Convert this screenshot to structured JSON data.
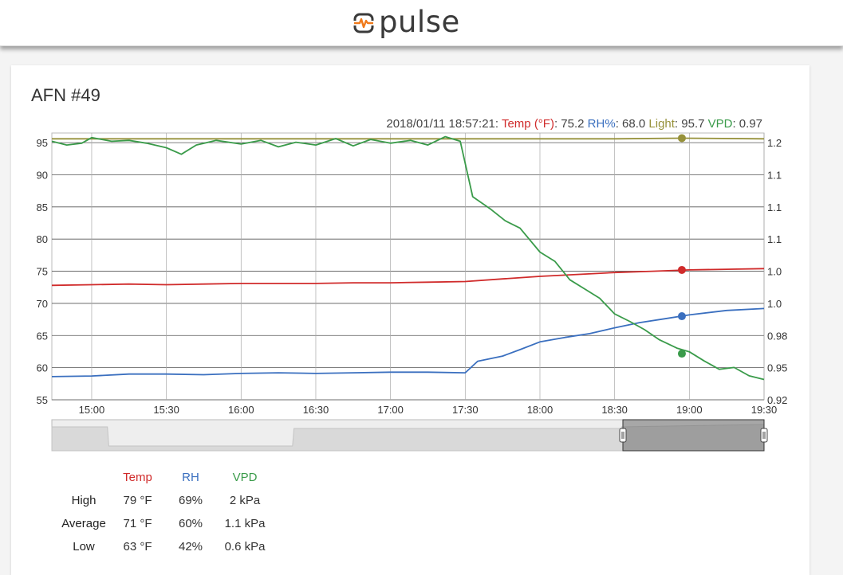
{
  "header": {
    "brand": "pulse",
    "logo_icon": "pulse-logo-icon"
  },
  "device": {
    "title": "AFN #49"
  },
  "readout": {
    "timestamp": "2018/01/11 18:57:21:",
    "temp_label": "Temp (°F)",
    "temp_value": ": 75.2",
    "rh_label": "RH%",
    "rh_value": ": 68.0",
    "light_label": "Light",
    "light_value": ": 95.7",
    "vpd_label": "VPD",
    "vpd_value": ": 0.97"
  },
  "colors": {
    "temp": "#d02b2b",
    "rh": "#3a6fbf",
    "light": "#96913a",
    "vpd": "#3a9b4a"
  },
  "stats": {
    "headers": {
      "temp": "Temp",
      "rh": "RH",
      "vpd": "VPD"
    },
    "rows": [
      {
        "label": "High",
        "temp": "79 °F",
        "rh": "69%",
        "vpd": "2 kPa"
      },
      {
        "label": "Average",
        "temp": "71 °F",
        "rh": "60%",
        "vpd": "1.1 kPa"
      },
      {
        "label": "Low",
        "temp": "63 °F",
        "rh": "42%",
        "vpd": "0.6 kPa"
      }
    ]
  },
  "chart_data": {
    "type": "line",
    "x_ticks": [
      "15:00",
      "15:30",
      "16:00",
      "16:30",
      "17:00",
      "17:30",
      "18:00",
      "18:30",
      "19:00",
      "19:30"
    ],
    "xlim": [
      "14:44",
      "19:30"
    ],
    "y_left_ticks": [
      "55",
      "60",
      "65",
      "70",
      "75",
      "80",
      "85",
      "90",
      "95"
    ],
    "y_left_lim": [
      55,
      96.5
    ],
    "y_right_ticks": [
      "0.92",
      "0.95",
      "0.98",
      "1.0",
      "1.0",
      "1.1",
      "1.1",
      "1.1",
      "1.2"
    ],
    "y_right_lim": [
      0.92,
      1.209
    ],
    "grid": true,
    "marker_time": "18:57",
    "series": [
      {
        "name": "Light",
        "axis": "left",
        "x": [
          "14:44",
          "15:30",
          "16:30",
          "17:30",
          "18:30",
          "18:57",
          "19:30"
        ],
        "y": [
          95.6,
          95.6,
          95.6,
          95.6,
          95.6,
          95.7,
          95.6
        ],
        "marker": 95.7
      },
      {
        "name": "Temp",
        "axis": "left",
        "x": [
          "14:44",
          "15:00",
          "15:15",
          "15:30",
          "15:45",
          "16:00",
          "16:15",
          "16:30",
          "16:45",
          "17:00",
          "17:15",
          "17:30",
          "17:45",
          "18:00",
          "18:15",
          "18:30",
          "18:45",
          "19:00",
          "19:15",
          "19:30"
        ],
        "y": [
          72.8,
          72.9,
          73.0,
          72.9,
          73.0,
          73.1,
          73.1,
          73.1,
          73.2,
          73.2,
          73.3,
          73.4,
          73.8,
          74.2,
          74.5,
          74.8,
          75.0,
          75.2,
          75.3,
          75.4
        ],
        "marker": 75.2
      },
      {
        "name": "RH",
        "axis": "left",
        "x": [
          "14:44",
          "15:00",
          "15:15",
          "15:30",
          "15:45",
          "16:00",
          "16:15",
          "16:30",
          "16:45",
          "17:00",
          "17:15",
          "17:30",
          "17:35",
          "17:45",
          "17:52",
          "18:00",
          "18:10",
          "18:20",
          "18:30",
          "18:40",
          "18:50",
          "19:00",
          "19:15",
          "19:30"
        ],
        "y": [
          58.6,
          58.7,
          59.0,
          59.0,
          58.9,
          59.1,
          59.2,
          59.1,
          59.2,
          59.3,
          59.3,
          59.2,
          61.0,
          61.8,
          62.8,
          64.0,
          64.7,
          65.3,
          66.2,
          67.0,
          67.6,
          68.2,
          68.9,
          69.2
        ],
        "marker": 68.0
      },
      {
        "name": "VPD",
        "axis": "right",
        "x": [
          "14:44",
          "14:50",
          "14:56",
          "15:00",
          "15:08",
          "15:15",
          "15:22",
          "15:30",
          "15:36",
          "15:42",
          "15:50",
          "16:00",
          "16:08",
          "16:15",
          "16:22",
          "16:30",
          "16:38",
          "16:45",
          "16:52",
          "17:00",
          "17:08",
          "17:15",
          "17:22",
          "17:28",
          "17:33",
          "17:40",
          "17:46",
          "17:52",
          "18:00",
          "18:06",
          "18:12",
          "18:18",
          "18:24",
          "18:30",
          "18:36",
          "18:42",
          "18:48",
          "18:55",
          "19:00",
          "19:06",
          "19:12",
          "19:18",
          "19:24",
          "19:30"
        ],
        "y": [
          1.2,
          1.196,
          1.198,
          1.204,
          1.2,
          1.201,
          1.198,
          1.193,
          1.186,
          1.196,
          1.201,
          1.197,
          1.201,
          1.194,
          1.199,
          1.196,
          1.203,
          1.195,
          1.202,
          1.198,
          1.201,
          1.196,
          1.205,
          1.2,
          1.14,
          1.127,
          1.114,
          1.106,
          1.08,
          1.07,
          1.05,
          1.04,
          1.03,
          1.013,
          1.005,
          0.996,
          0.985,
          0.976,
          0.972,
          0.962,
          0.953,
          0.955,
          0.946,
          0.942
        ],
        "marker": 0.97
      }
    ]
  }
}
